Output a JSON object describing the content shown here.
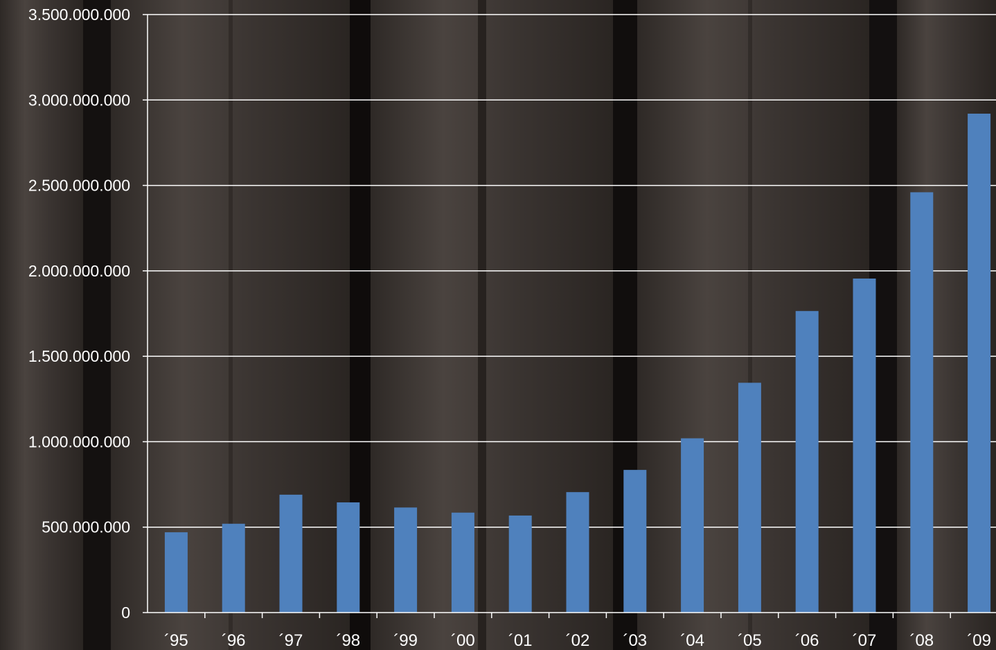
{
  "colors": {
    "bar": "#4f81bd",
    "grid": "#ffffff",
    "axis": "#ffffff",
    "background": "#3b3532"
  },
  "chart_data": {
    "type": "bar",
    "title": "",
    "xlabel": "",
    "ylabel": "",
    "categories": [
      "´95",
      "´96",
      "´97",
      "´98",
      "´99",
      "´00",
      "´01",
      "´02",
      "´03",
      "´04",
      "´05",
      "´06",
      "´07",
      "´08",
      "´09"
    ],
    "values": [
      470000000,
      520000000,
      690000000,
      645000000,
      615000000,
      585000000,
      568000000,
      705000000,
      835000000,
      1020000000,
      1345000000,
      1765000000,
      1955000000,
      2460000000,
      2920000000
    ],
    "ylim": [
      0,
      3500000000
    ],
    "yticks": [
      0,
      500000000,
      1000000000,
      1500000000,
      2000000000,
      2500000000,
      3000000000,
      3500000000
    ],
    "ytick_labels": [
      "0",
      "500.000.000",
      "1.000.000.000",
      "1.500.000.000",
      "2.000.000.000",
      "2.500.000.000",
      "3.000.000.000",
      "3.500.000.000"
    ],
    "grid": true,
    "legend": "none"
  }
}
